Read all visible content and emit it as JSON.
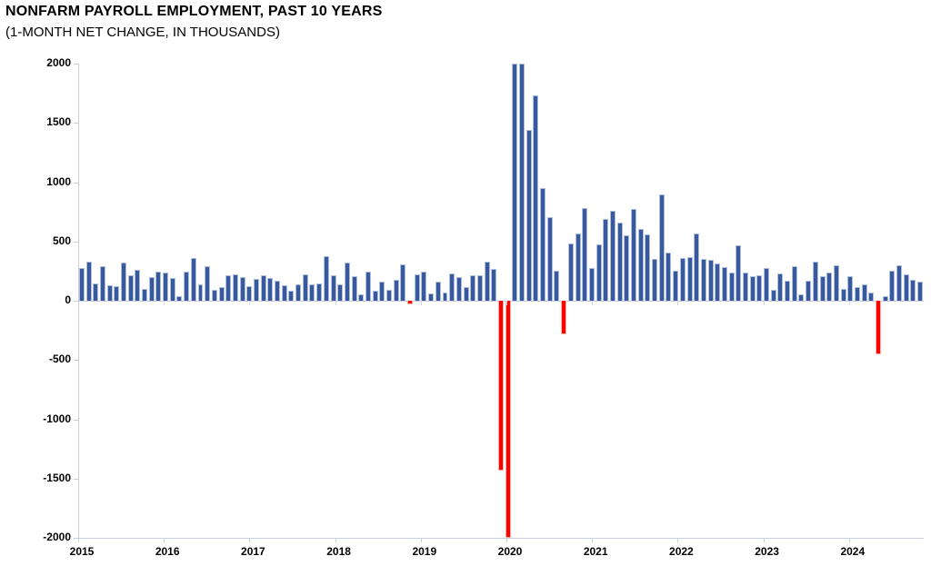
{
  "title": "NONFARM PAYROLL EMPLOYMENT, PAST 10 YEARS",
  "subtitle": "(1-MONTH NET CHANGE, IN THOUSANDS)",
  "chart_data": {
    "type": "bar",
    "title": "NONFARM PAYROLL EMPLOYMENT, PAST 10 YEARS",
    "subtitle": "(1-MONTH NET CHANGE, IN THOUSANDS)",
    "unit": "thousands",
    "ylim": [
      -2000,
      2000
    ],
    "y_ticks": [
      2000,
      1500,
      1000,
      500,
      0,
      -500,
      -1000,
      -1500,
      -2000
    ],
    "x_year_labels": [
      "2015",
      "2016",
      "2017",
      "2018",
      "2019",
      "2020",
      "2021",
      "2022",
      "2023",
      "2024"
    ],
    "legend": "none",
    "grid": "off",
    "positive_color": "#38599d",
    "negative_color": "#ff0000",
    "axis_color": "#c9cfda",
    "months": [
      "2015-03",
      "2015-04",
      "2015-05",
      "2015-06",
      "2015-07",
      "2015-08",
      "2015-09",
      "2015-10",
      "2015-11",
      "2015-12",
      "2016-01",
      "2016-02",
      "2016-03",
      "2016-04",
      "2016-05",
      "2016-06",
      "2016-07",
      "2016-08",
      "2016-09",
      "2016-10",
      "2016-11",
      "2016-12",
      "2017-01",
      "2017-02",
      "2017-03",
      "2017-04",
      "2017-05",
      "2017-06",
      "2017-07",
      "2017-08",
      "2017-09",
      "2017-10",
      "2017-11",
      "2017-12",
      "2018-01",
      "2018-02",
      "2018-03",
      "2018-04",
      "2018-05",
      "2018-06",
      "2018-07",
      "2018-08",
      "2018-09",
      "2018-10",
      "2018-11",
      "2018-12",
      "2019-01",
      "2019-02",
      "2019-03",
      "2019-04",
      "2019-05",
      "2019-06",
      "2019-07",
      "2019-08",
      "2019-09",
      "2019-10",
      "2019-11",
      "2019-12",
      "2020-01",
      "2020-02",
      "2020-03",
      "2020-04",
      "2020-05",
      "2020-06",
      "2020-07",
      "2020-08",
      "2020-09",
      "2020-10",
      "2020-11",
      "2020-12",
      "2021-01",
      "2021-02",
      "2021-03",
      "2021-04",
      "2021-05",
      "2021-06",
      "2021-07",
      "2021-08",
      "2021-09",
      "2021-10",
      "2021-11",
      "2021-12",
      "2022-01",
      "2022-02",
      "2022-03",
      "2022-04",
      "2022-05",
      "2022-06",
      "2022-07",
      "2022-08",
      "2022-09",
      "2022-10",
      "2022-11",
      "2022-12",
      "2023-01",
      "2023-02",
      "2023-03",
      "2023-04",
      "2023-05",
      "2023-06",
      "2023-07",
      "2023-08",
      "2023-09",
      "2023-10",
      "2023-11",
      "2023-12",
      "2024-01",
      "2024-02",
      "2024-03",
      "2024-04",
      "2024-05",
      "2024-06",
      "2024-07",
      "2024-08",
      "2024-09",
      "2024-10",
      "2024-11",
      "2024-12",
      "2025-01",
      "2025-02",
      "2025-03"
    ],
    "values": [
      273,
      332,
      148,
      289,
      128,
      123,
      324,
      217,
      263,
      97,
      199,
      243,
      240,
      192,
      40,
      243,
      358,
      140,
      289,
      94,
      115,
      212,
      222,
      197,
      120,
      186,
      212,
      190,
      171,
      128,
      84,
      140,
      222,
      136,
      146,
      375,
      217,
      135,
      319,
      209,
      51,
      243,
      84,
      161,
      90,
      179,
      306,
      -28,
      222,
      243,
      59,
      161,
      69,
      230,
      199,
      115,
      212,
      217,
      327,
      268,
      -1430,
      -2000,
      2000,
      2000,
      1443,
      1732,
      950,
      707,
      255,
      -285,
      485,
      567,
      779,
      276,
      472,
      689,
      758,
      656,
      549,
      771,
      608,
      562,
      350,
      899,
      404,
      250,
      362,
      368,
      567,
      350,
      347,
      316,
      286,
      235,
      465,
      240,
      209,
      215,
      275,
      94,
      230,
      166,
      289,
      51,
      171,
      332,
      208,
      235,
      301,
      102,
      209,
      113,
      140,
      71,
      -454,
      38,
      255,
      301,
      224,
      174,
      159
    ]
  }
}
